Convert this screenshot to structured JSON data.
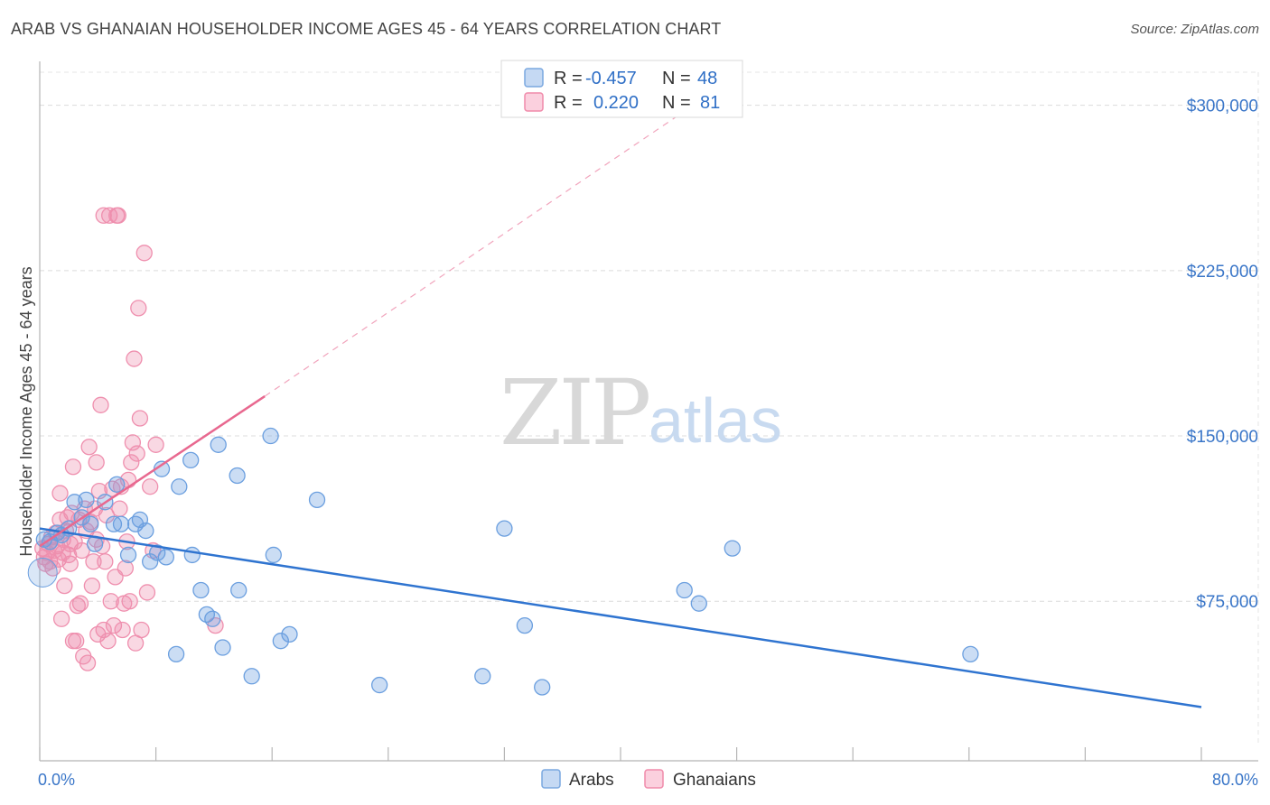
{
  "title": "ARAB VS GHANAIAN HOUSEHOLDER INCOME AGES 45 - 64 YEARS CORRELATION CHART",
  "source": "Source: ZipAtlas.com",
  "watermark": {
    "zip": "ZIP",
    "atlas": "atlas"
  },
  "legend_top": [
    {
      "r_label": "R =",
      "r_value": "-0.457",
      "n_label": "N =",
      "n_value": "48",
      "color": "#7aa8e0"
    },
    {
      "r_label": "R =",
      "r_value": "0.220",
      "n_label": "N =",
      "n_value": "81",
      "color": "#f08aaa"
    }
  ],
  "legend_bottom": [
    {
      "label": "Arabs",
      "color": "#7aa8e0"
    },
    {
      "label": "Ghanaians",
      "color": "#f08aaa"
    }
  ],
  "colors": {
    "arab": "#6b9fdf",
    "ghana": "#ef8fae",
    "arab_line": "#2f74d0",
    "ghana_line": "#e8688f",
    "tick": "#3a76c8"
  },
  "chart_data": {
    "type": "scatter",
    "xlabel": "",
    "ylabel": "Householder Income Ages 45 - 64 years",
    "xlim": [
      0,
      80
    ],
    "ylim": [
      10000,
      315000
    ],
    "x_tick_labels": [
      "0.0%",
      "80.0%"
    ],
    "y_ticks": [
      75000,
      150000,
      225000,
      300000
    ],
    "y_tick_labels": [
      "$75,000",
      "$150,000",
      "$225,000",
      "$300,000"
    ],
    "grid": true,
    "series": [
      {
        "name": "Arabs",
        "points": [
          [
            0.3,
            103000
          ],
          [
            0.7,
            102000
          ],
          [
            1.2,
            106000
          ],
          [
            1.5,
            105000
          ],
          [
            2.0,
            108000
          ],
          [
            2.4,
            120000
          ],
          [
            2.9,
            113000
          ],
          [
            3.2,
            121000
          ],
          [
            3.5,
            110000
          ],
          [
            3.8,
            101000
          ],
          [
            4.5,
            120000
          ],
          [
            5.1,
            110000
          ],
          [
            5.3,
            128000
          ],
          [
            5.6,
            110000
          ],
          [
            6.1,
            96000
          ],
          [
            6.6,
            110000
          ],
          [
            6.9,
            112000
          ],
          [
            7.3,
            107000
          ],
          [
            7.6,
            93000
          ],
          [
            8.1,
            97000
          ],
          [
            8.4,
            135000
          ],
          [
            8.7,
            95000
          ],
          [
            9.4,
            51000
          ],
          [
            9.6,
            127000
          ],
          [
            10.4,
            139000
          ],
          [
            10.5,
            96000
          ],
          [
            11.1,
            80000
          ],
          [
            11.5,
            69000
          ],
          [
            11.9,
            67000
          ],
          [
            12.3,
            146000
          ],
          [
            12.6,
            54000
          ],
          [
            13.6,
            132000
          ],
          [
            13.7,
            80000
          ],
          [
            14.6,
            41000
          ],
          [
            15.9,
            150000
          ],
          [
            16.1,
            96000
          ],
          [
            16.6,
            57000
          ],
          [
            17.2,
            60000
          ],
          [
            19.1,
            121000
          ],
          [
            23.4,
            37000
          ],
          [
            30.5,
            41000
          ],
          [
            32.0,
            108000
          ],
          [
            33.4,
            64000
          ],
          [
            34.6,
            36000
          ],
          [
            44.4,
            80000
          ],
          [
            45.4,
            74000
          ],
          [
            47.7,
            99000
          ],
          [
            64.1,
            51000
          ]
        ]
      },
      {
        "name": "Ghanaians",
        "points": [
          [
            0.2,
            99000
          ],
          [
            0.3,
            95000
          ],
          [
            0.4,
            92000
          ],
          [
            0.5,
            97000
          ],
          [
            0.6,
            101000
          ],
          [
            0.7,
            93000
          ],
          [
            0.8,
            104000
          ],
          [
            0.9,
            90000
          ],
          [
            1.0,
            98000
          ],
          [
            1.1,
            106000
          ],
          [
            1.2,
            100000
          ],
          [
            1.3,
            94000
          ],
          [
            1.4,
            112000
          ],
          [
            1.4,
            124000
          ],
          [
            1.5,
            67000
          ],
          [
            1.6,
            103000
          ],
          [
            1.6,
            97000
          ],
          [
            1.7,
            82000
          ],
          [
            1.8,
            107000
          ],
          [
            1.9,
            113000
          ],
          [
            2.0,
            96000
          ],
          [
            2.1,
            92000
          ],
          [
            2.1,
            101000
          ],
          [
            2.2,
            115000
          ],
          [
            2.3,
            57000
          ],
          [
            2.3,
            136000
          ],
          [
            2.4,
            102000
          ],
          [
            2.5,
            57000
          ],
          [
            2.6,
            73000
          ],
          [
            2.7,
            112000
          ],
          [
            2.8,
            74000
          ],
          [
            2.9,
            98000
          ],
          [
            3.0,
            50000
          ],
          [
            3.1,
            117000
          ],
          [
            3.2,
            107000
          ],
          [
            3.3,
            47000
          ],
          [
            3.4,
            145000
          ],
          [
            3.5,
            111000
          ],
          [
            3.6,
            82000
          ],
          [
            3.7,
            93000
          ],
          [
            3.8,
            117000
          ],
          [
            3.9,
            103000
          ],
          [
            3.9,
            138000
          ],
          [
            4.0,
            60000
          ],
          [
            4.1,
            125000
          ],
          [
            4.2,
            164000
          ],
          [
            4.3,
            100000
          ],
          [
            4.4,
            250000
          ],
          [
            4.4,
            62000
          ],
          [
            4.5,
            93000
          ],
          [
            4.6,
            114000
          ],
          [
            4.7,
            57000
          ],
          [
            4.8,
            250000
          ],
          [
            4.9,
            75000
          ],
          [
            5.0,
            126000
          ],
          [
            5.1,
            64000
          ],
          [
            5.2,
            86000
          ],
          [
            5.3,
            250000
          ],
          [
            5.4,
            250000
          ],
          [
            5.5,
            117000
          ],
          [
            5.6,
            127000
          ],
          [
            5.7,
            62000
          ],
          [
            5.8,
            74000
          ],
          [
            5.9,
            90000
          ],
          [
            6.0,
            102000
          ],
          [
            6.1,
            130000
          ],
          [
            6.2,
            75000
          ],
          [
            6.3,
            138000
          ],
          [
            6.4,
            147000
          ],
          [
            6.5,
            185000
          ],
          [
            6.6,
            56000
          ],
          [
            6.7,
            142000
          ],
          [
            6.8,
            208000
          ],
          [
            6.9,
            158000
          ],
          [
            7.0,
            62000
          ],
          [
            7.2,
            233000
          ],
          [
            7.4,
            79000
          ],
          [
            7.6,
            127000
          ],
          [
            7.8,
            98000
          ],
          [
            8.0,
            146000
          ],
          [
            12.1,
            64000
          ]
        ]
      }
    ],
    "trendlines": [
      {
        "series": "Arabs",
        "from": [
          0,
          108000
        ],
        "to": [
          80,
          27000
        ],
        "style": "solid"
      },
      {
        "series": "Ghanaians",
        "from": [
          0,
          100000
        ],
        "to": [
          15.5,
          168000
        ],
        "style": "solid",
        "extended_to": [
          45,
          300000
        ],
        "extended_style": "dashed"
      }
    ]
  }
}
